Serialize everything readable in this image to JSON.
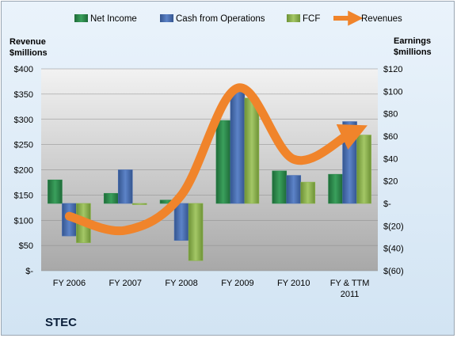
{
  "company": "STEC",
  "legend": [
    "Net Income",
    "Cash from Operations",
    "FCF",
    "Revenues"
  ],
  "colors": {
    "net_income": "#2e8a4e",
    "cash_from_operations": "#4a6fb4",
    "fcf": "#8cb54a",
    "revenues": "#f0842b"
  },
  "chart_data": {
    "type": "bar",
    "categories": [
      "FY 2006",
      "FY 2007",
      "FY 2008",
      "FY 2009",
      "FY 2010",
      "FY & TTM 2011"
    ],
    "left_axis": {
      "title": [
        "Revenue",
        "$millions"
      ],
      "ylim": [
        0,
        400
      ],
      "ticks": [
        0,
        50,
        100,
        150,
        200,
        250,
        300,
        350,
        400
      ],
      "tick_labels": [
        "$-",
        "$50",
        "$100",
        "$150",
        "$200",
        "$250",
        "$300",
        "$350",
        "$400"
      ]
    },
    "right_axis": {
      "title": [
        "Earnings",
        "$millions"
      ],
      "ylim": [
        -60,
        120
      ],
      "ticks": [
        -60,
        -40,
        -20,
        0,
        20,
        40,
        60,
        80,
        100,
        120
      ],
      "tick_labels": [
        "$(60)",
        "$(40)",
        "$(20)",
        "$-",
        "$20",
        "$40",
        "$60",
        "$80",
        "$100",
        "$120"
      ]
    },
    "series": [
      {
        "name": "Net Income",
        "axis": "right",
        "kind": "bar",
        "values": [
          21,
          9,
          3,
          74,
          29,
          26
        ]
      },
      {
        "name": "Cash from Operations",
        "axis": "right",
        "kind": "bar",
        "values": [
          -29,
          30,
          -33,
          102,
          25,
          73
        ]
      },
      {
        "name": "FCF",
        "axis": "right",
        "kind": "bar",
        "values": [
          -35,
          -1,
          -51,
          94,
          19,
          61
        ]
      },
      {
        "name": "Revenues",
        "axis": "left",
        "kind": "line",
        "values": [
          108,
          80,
          150,
          362,
          221,
          272
        ]
      }
    ]
  }
}
